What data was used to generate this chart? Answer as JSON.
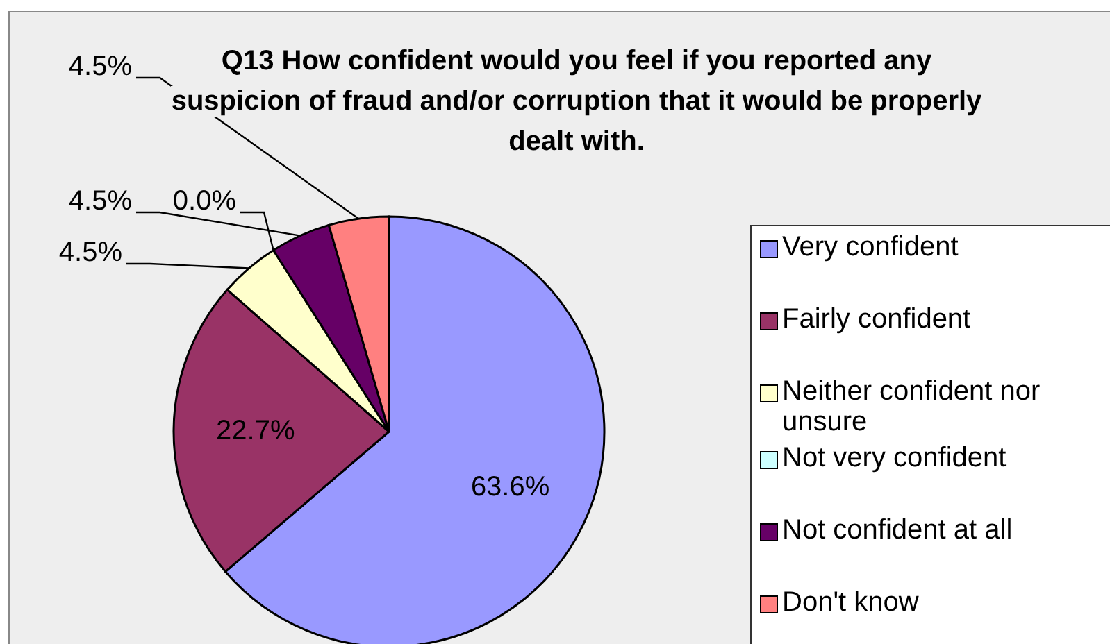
{
  "chart_data": {
    "type": "pie",
    "title": "Q13 How confident would you feel if you reported any suspicion of fraud and/or corruption that it would be properly dealt with.",
    "categories": [
      "Very confident",
      "Fairly confident",
      "Neither confident nor unsure",
      "Not very confident",
      "Not confident at all",
      "Don't know"
    ],
    "values": [
      63.6,
      22.7,
      4.5,
      0.0,
      4.5,
      4.5
    ],
    "value_labels": [
      "63.6%",
      "22.7%",
      "4.5%",
      "0.0%",
      "4.5%",
      "4.5%"
    ],
    "colors": [
      "#9999ff",
      "#993366",
      "#ffffcc",
      "#ccffff",
      "#660066",
      "#ff8080"
    ],
    "legend": "right"
  }
}
